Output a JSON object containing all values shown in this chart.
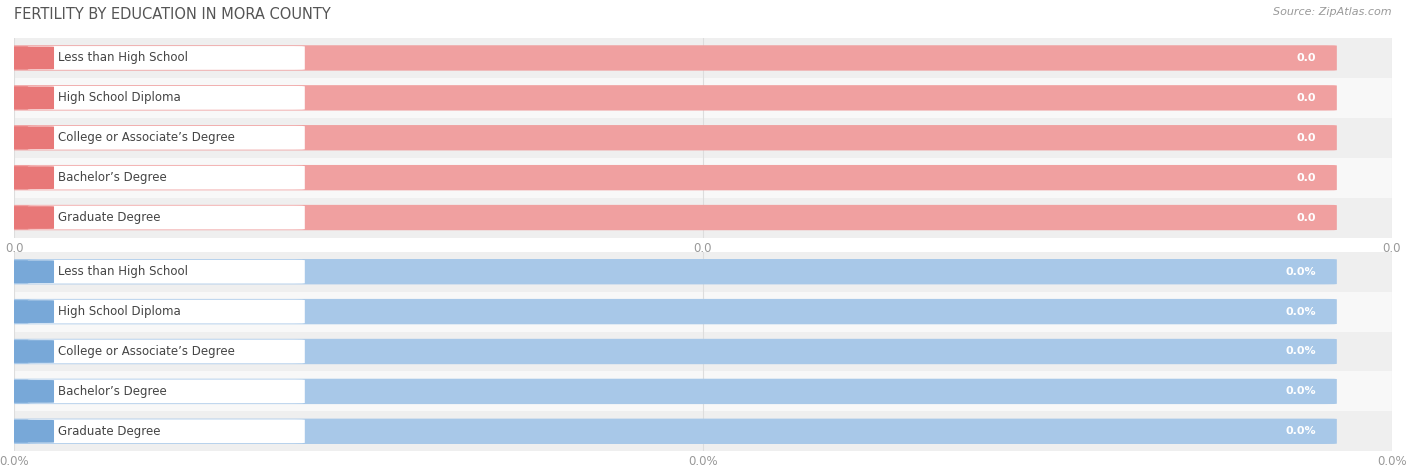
{
  "title": "FERTILITY BY EDUCATION IN MORA COUNTY",
  "source": "Source: ZipAtlas.com",
  "categories": [
    "Less than High School",
    "High School Diploma",
    "College or Associate’s Degree",
    "Bachelor’s Degree",
    "Graduate Degree"
  ],
  "top_values": [
    0.0,
    0.0,
    0.0,
    0.0,
    0.0
  ],
  "bottom_values": [
    0.0,
    0.0,
    0.0,
    0.0,
    0.0
  ],
  "top_bar_color": "#f0a0a0",
  "top_cap_color": "#e87878",
  "bottom_bar_color": "#a8c8e8",
  "bottom_cap_color": "#78a8d8",
  "row_bg_even": "#efefef",
  "row_bg_odd": "#f8f8f8",
  "label_color": "#555555",
  "value_color_top": "#e87878",
  "value_color_bottom": "#78a8d8",
  "grid_color": "#dddddd",
  "tick_color": "#999999",
  "xtick_labels_top": [
    "0.0",
    "0.0",
    "0.0"
  ],
  "xtick_labels_bottom": [
    "0.0%",
    "0.0%",
    "0.0%"
  ],
  "figsize": [
    14.06,
    4.75
  ],
  "dpi": 100,
  "title_fontsize": 10.5,
  "label_fontsize": 8.5,
  "value_fontsize": 8,
  "tick_fontsize": 8.5,
  "source_fontsize": 8
}
